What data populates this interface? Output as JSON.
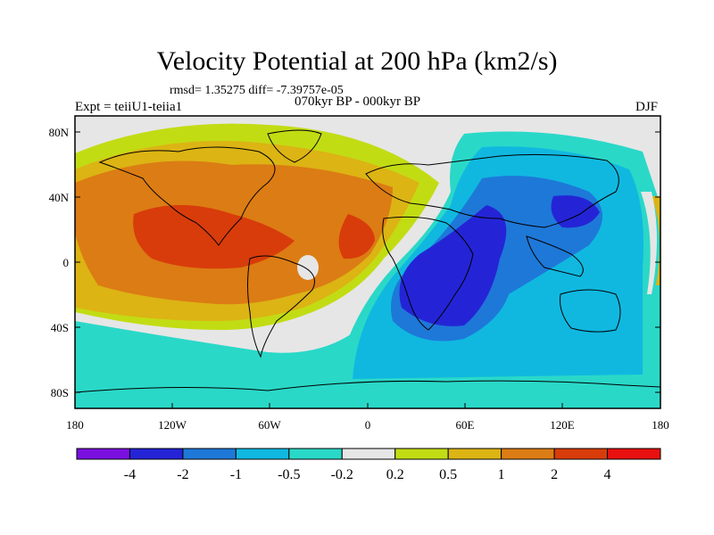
{
  "header": {
    "title": "Velocity Potential at 200 hPa (km2/s)",
    "stats": "rmsd= 1.35275 diff= -7.39757e-05",
    "experiment": "Expt = teiiU1-teiia1",
    "period": "070kyr BP - 000kyr BP",
    "season": "DJF"
  },
  "axes": {
    "lat_ticks": [
      "80N",
      "40N",
      "0",
      "40S",
      "80S"
    ],
    "lon_ticks": [
      "180",
      "120W",
      "60W",
      "0",
      "60E",
      "120E",
      "180"
    ]
  },
  "colorbar": {
    "labels": [
      "-4",
      "-2",
      "-1",
      "-0.5",
      "-0.2",
      "0.2",
      "0.5",
      "1",
      "2",
      "4"
    ],
    "colors": [
      "#7a10e0",
      "#2424d6",
      "#1e78d8",
      "#10b8e0",
      "#2ad8c8",
      "#e6e6e6",
      "#c2dc14",
      "#dcb414",
      "#dc7c14",
      "#d83c0a",
      "#e81010"
    ]
  },
  "map_colors": {
    "land_outline": "#000000",
    "neutral": "#e6e6e6"
  }
}
